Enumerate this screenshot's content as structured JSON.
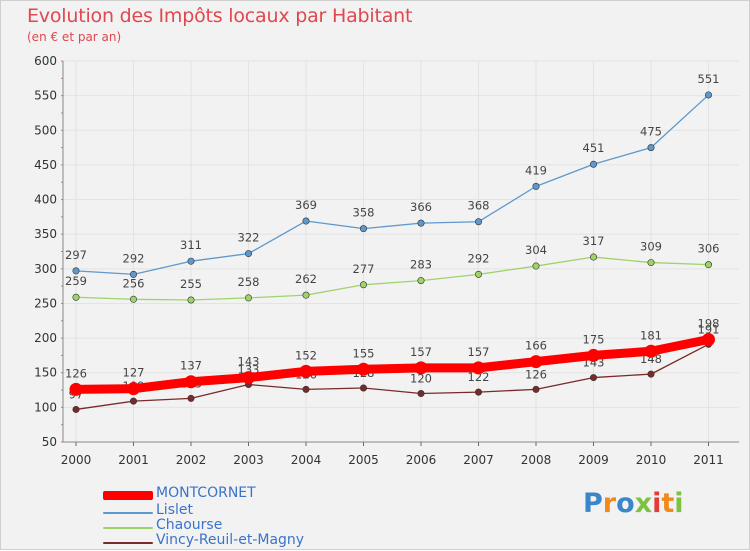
{
  "title": "Evolution des Impôts locaux par Habitant",
  "subtitle": "(en € et par an)",
  "logo_text": "Proxiti",
  "colors": {
    "title": "#e0484e",
    "legend_text": "#3a73c9",
    "grid": "#e3e3e3",
    "background": "#f2f2f2"
  },
  "chart_data": {
    "type": "line",
    "categories": [
      "2000",
      "2001",
      "2002",
      "2003",
      "2004",
      "2005",
      "2006",
      "2007",
      "2008",
      "2009",
      "2010",
      "2011"
    ],
    "ylim": [
      50,
      600
    ],
    "yticks": [
      50,
      100,
      150,
      200,
      250,
      300,
      350,
      400,
      450,
      500,
      550,
      600
    ],
    "grid": true,
    "legend_position": "bottom-left",
    "series": [
      {
        "name": "MONTCORNET",
        "color": "#ff0000",
        "values": [
          126,
          127,
          137,
          143,
          152,
          155,
          157,
          157,
          166,
          175,
          181,
          198
        ]
      },
      {
        "name": "Lislet",
        "color": "#5e98cc",
        "values": [
          297,
          292,
          311,
          322,
          369,
          358,
          366,
          368,
          419,
          451,
          475,
          551
        ]
      },
      {
        "name": "Chaourse",
        "color": "#9ed36a",
        "values": [
          259,
          256,
          255,
          258,
          262,
          277,
          283,
          292,
          304,
          317,
          309,
          306
        ]
      },
      {
        "name": "Vincy-Reuil-et-Magny",
        "color": "#7a2a2a",
        "values": [
          97,
          109,
          113,
          133,
          126,
          128,
          120,
          122,
          126,
          143,
          148,
          191
        ]
      }
    ]
  }
}
